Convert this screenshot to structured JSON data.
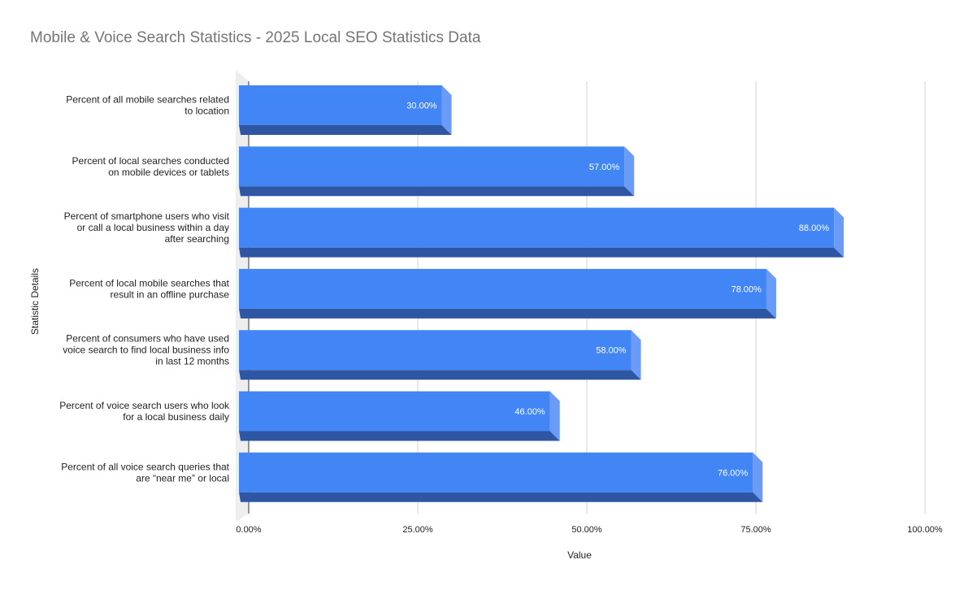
{
  "chart_data": {
    "type": "bar",
    "orientation": "horizontal",
    "style": "3d",
    "title": "Mobile & Voice Search Statistics - 2025 Local SEO Statistics Data",
    "xlabel": "Value",
    "ylabel": "Statistic Details",
    "xlim": [
      0,
      100
    ],
    "x_ticks": [
      "0.00%",
      "25.00%",
      "50.00%",
      "75.00%",
      "100.00%"
    ],
    "grid": true,
    "legend": "none",
    "bar_color": "#4285f4",
    "categories": [
      [
        "Percent of all mobile searches related",
        "to location"
      ],
      [
        "Percent of local searches conducted",
        "on mobile devices or tablets"
      ],
      [
        "Percent of smartphone users who visit",
        "or call a local business within a day",
        "after searching"
      ],
      [
        "Percent of local mobile searches that",
        "result in an offline purchase"
      ],
      [
        "Percent of consumers who have used",
        "voice search to find local business info",
        "in last 12 months"
      ],
      [
        "Percent of voice search users who look",
        "for a local business daily"
      ],
      [
        "Percent of all voice search queries that",
        "are “near me” or local"
      ]
    ],
    "values": [
      30,
      57,
      88,
      78,
      58,
      46,
      76
    ],
    "data_labels": [
      "30.00%",
      "57.00%",
      "88.00%",
      "78.00%",
      "58.00%",
      "46.00%",
      "76.00%"
    ]
  }
}
